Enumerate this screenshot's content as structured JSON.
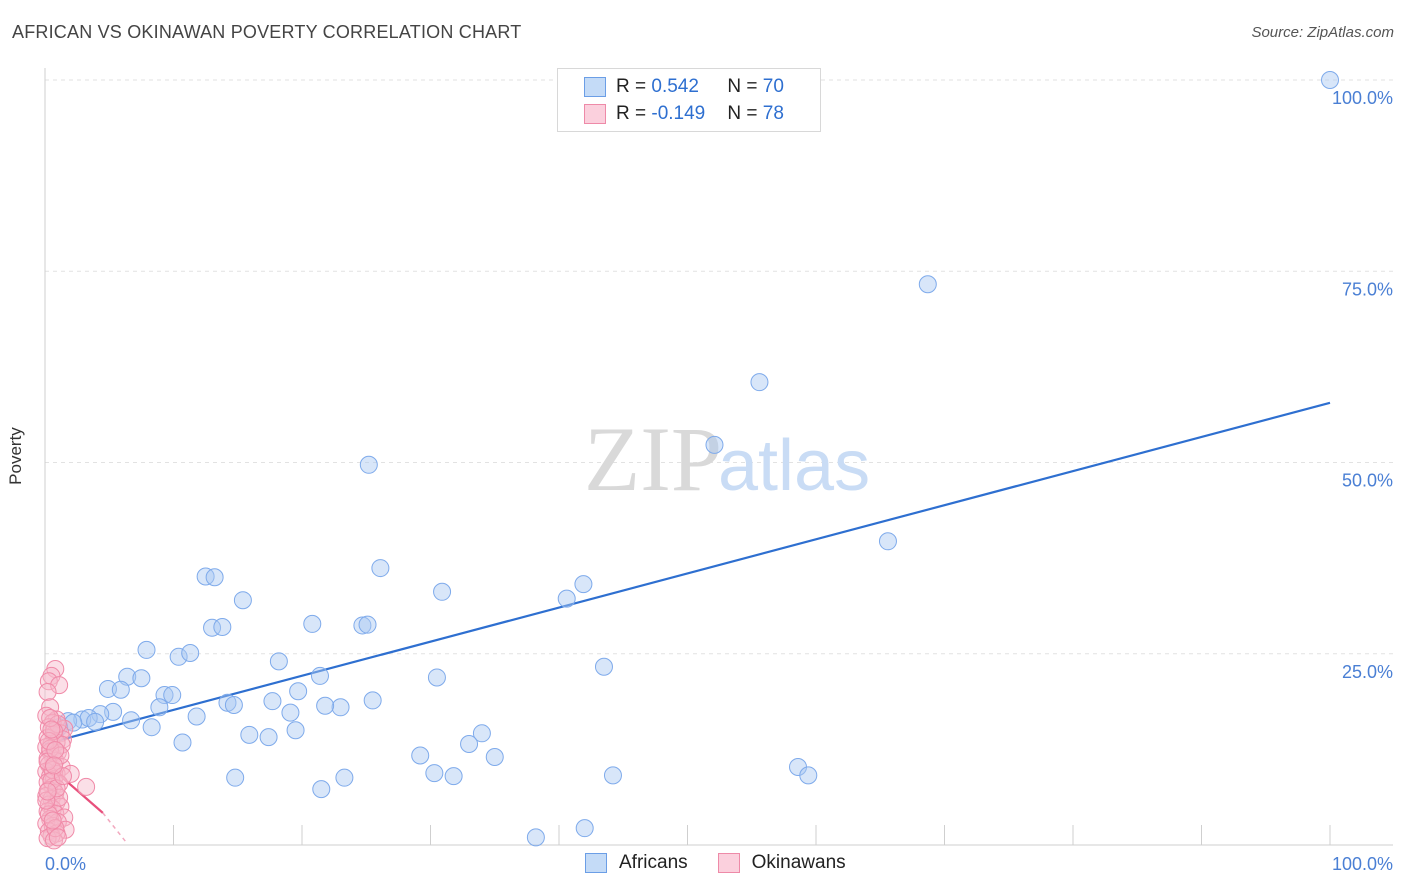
{
  "title": "AFRICAN VS OKINAWAN POVERTY CORRELATION CHART",
  "source": "Source: ZipAtlas.com",
  "watermark": {
    "zip": "ZIP",
    "atlas": "atlas"
  },
  "legend": {
    "africans": {
      "r_label": "R = ",
      "r_value": "0.542",
      "n_label": "N = ",
      "n_value": "70",
      "color": "#a9c8f2"
    },
    "okinawans": {
      "r_label": "R = ",
      "r_value": "-0.149",
      "n_label": "N = ",
      "n_value": "78",
      "color": "#f6b7ca"
    }
  },
  "bottom_legend": {
    "africans": "Africans",
    "okinawans": "Okinawans"
  },
  "chart_data": {
    "type": "scatter",
    "title": "AFRICAN VS OKINAWAN POVERTY CORRELATION CHART",
    "xlabel": "",
    "ylabel": "Poverty",
    "xlim": [
      0,
      100
    ],
    "ylim": [
      0,
      100
    ],
    "x_tick_labels": [
      "0.0%",
      "100.0%"
    ],
    "y_tick_labels": [
      "100.0%",
      "75.0%",
      "50.0%",
      "25.0%"
    ],
    "y_ticks": [
      100,
      75,
      50,
      25
    ],
    "series": [
      {
        "name": "Africans",
        "color": "#7eaaeb",
        "line_color": "#2e6fd0",
        "trend": {
          "x": [
            0,
            100
          ],
          "y": [
            13.2,
            57.8
          ]
        },
        "points": [
          [
            100,
            100
          ],
          [
            68.7,
            73.3
          ],
          [
            55.6,
            60.5
          ],
          [
            52.1,
            52.3
          ],
          [
            25.2,
            49.7
          ],
          [
            65.6,
            39.7
          ],
          [
            26.1,
            36.2
          ],
          [
            41.9,
            34.1
          ],
          [
            30.9,
            33.1
          ],
          [
            12.5,
            35.1
          ],
          [
            13.2,
            35.0
          ],
          [
            40.6,
            32.2
          ],
          [
            15.4,
            32.0
          ],
          [
            20.8,
            28.9
          ],
          [
            24.7,
            28.7
          ],
          [
            25.1,
            28.8
          ],
          [
            13.0,
            28.4
          ],
          [
            13.8,
            28.5
          ],
          [
            7.9,
            25.5
          ],
          [
            10.4,
            24.6
          ],
          [
            11.3,
            25.1
          ],
          [
            18.2,
            24.0
          ],
          [
            43.5,
            23.3
          ],
          [
            6.4,
            22.0
          ],
          [
            7.5,
            21.8
          ],
          [
            21.4,
            22.1
          ],
          [
            30.5,
            21.9
          ],
          [
            4.9,
            20.4
          ],
          [
            5.9,
            20.3
          ],
          [
            9.3,
            19.6
          ],
          [
            9.9,
            19.6
          ],
          [
            19.7,
            20.1
          ],
          [
            14.2,
            18.6
          ],
          [
            14.7,
            18.3
          ],
          [
            17.7,
            18.8
          ],
          [
            23.0,
            18.0
          ],
          [
            25.5,
            18.9
          ],
          [
            8.9,
            18.0
          ],
          [
            21.8,
            18.2
          ],
          [
            19.1,
            17.3
          ],
          [
            11.8,
            16.8
          ],
          [
            5.3,
            17.4
          ],
          [
            4.3,
            17.1
          ],
          [
            6.7,
            16.3
          ],
          [
            2.9,
            16.4
          ],
          [
            3.4,
            16.6
          ],
          [
            3.9,
            16.1
          ],
          [
            1.8,
            16.2
          ],
          [
            2.2,
            16.0
          ],
          [
            8.3,
            15.4
          ],
          [
            19.5,
            15.0
          ],
          [
            1.1,
            15.4
          ],
          [
            0.8,
            14.6
          ],
          [
            15.9,
            14.4
          ],
          [
            17.4,
            14.1
          ],
          [
            10.7,
            13.4
          ],
          [
            34.0,
            14.6
          ],
          [
            33.0,
            13.2
          ],
          [
            35.0,
            11.5
          ],
          [
            29.2,
            11.7
          ],
          [
            30.3,
            9.4
          ],
          [
            31.8,
            9.0
          ],
          [
            44.2,
            9.1
          ],
          [
            14.8,
            8.8
          ],
          [
            23.3,
            8.8
          ],
          [
            21.5,
            7.3
          ],
          [
            58.6,
            10.2
          ],
          [
            59.4,
            9.1
          ],
          [
            42.0,
            2.2
          ],
          [
            38.2,
            1.0
          ]
        ]
      },
      {
        "name": "Okinawans",
        "color": "#f08aa8",
        "line_color": "#e8507c",
        "trend": {
          "x": [
            0,
            4.5
          ],
          "y": [
            10.8,
            4.2
          ]
        },
        "trend_dashed": {
          "x": [
            4.5,
            6.3
          ],
          "y": [
            4.2,
            0.4
          ]
        },
        "points": [
          [
            0.8,
            23.0
          ],
          [
            0.5,
            22.1
          ],
          [
            0.3,
            21.4
          ],
          [
            1.1,
            20.9
          ],
          [
            0.2,
            20.0
          ],
          [
            0.4,
            18.0
          ],
          [
            0.9,
            16.4
          ],
          [
            0.1,
            16.9
          ],
          [
            0.6,
            16.0
          ],
          [
            1.5,
            15.2
          ],
          [
            0.3,
            15.4
          ],
          [
            1.2,
            14.6
          ],
          [
            0.7,
            14.4
          ],
          [
            0.2,
            14.0
          ],
          [
            1.4,
            13.8
          ],
          [
            0.5,
            13.2
          ],
          [
            0.9,
            13.4
          ],
          [
            0.1,
            12.8
          ],
          [
            0.4,
            12.2
          ],
          [
            1.0,
            12.1
          ],
          [
            0.6,
            11.6
          ],
          [
            0.2,
            11.3
          ],
          [
            0.8,
            11.0
          ],
          [
            0.3,
            10.5
          ],
          [
            1.3,
            10.2
          ],
          [
            0.5,
            10.0
          ],
          [
            0.1,
            9.6
          ],
          [
            0.9,
            9.3
          ],
          [
            0.4,
            9.0
          ],
          [
            0.7,
            8.6
          ],
          [
            2.0,
            9.3
          ],
          [
            0.2,
            8.2
          ],
          [
            1.1,
            8.0
          ],
          [
            0.6,
            7.6
          ],
          [
            0.3,
            7.2
          ],
          [
            3.2,
            7.6
          ],
          [
            0.8,
            6.8
          ],
          [
            0.1,
            6.4
          ],
          [
            0.5,
            6.0
          ],
          [
            0.9,
            5.6
          ],
          [
            0.3,
            5.3
          ],
          [
            1.2,
            5.0
          ],
          [
            0.6,
            4.7
          ],
          [
            0.2,
            4.4
          ],
          [
            0.8,
            4.1
          ],
          [
            1.5,
            3.6
          ],
          [
            0.4,
            3.4
          ],
          [
            1.0,
            3.0
          ],
          [
            0.1,
            2.8
          ],
          [
            0.6,
            2.5
          ],
          [
            1.6,
            2.0
          ],
          [
            0.3,
            1.8
          ],
          [
            0.9,
            1.5
          ],
          [
            0.5,
            1.2
          ],
          [
            0.2,
            0.9
          ],
          [
            0.7,
            0.6
          ],
          [
            1.3,
            13.1
          ],
          [
            1.0,
            15.8
          ],
          [
            0.4,
            12.6
          ],
          [
            0.6,
            9.8
          ],
          [
            1.1,
            6.2
          ],
          [
            0.3,
            4.0
          ],
          [
            0.8,
            2.2
          ],
          [
            0.2,
            10.9
          ],
          [
            0.7,
            14.9
          ],
          [
            0.5,
            8.4
          ],
          [
            1.2,
            11.7
          ],
          [
            0.1,
            5.8
          ],
          [
            0.9,
            7.4
          ],
          [
            0.4,
            16.6
          ],
          [
            0.6,
            3.2
          ],
          [
            1.4,
            9.0
          ],
          [
            0.3,
            13.6
          ],
          [
            0.8,
            12.4
          ],
          [
            0.2,
            7.0
          ],
          [
            1.0,
            1.0
          ],
          [
            0.5,
            15.1
          ],
          [
            0.7,
            10.4
          ]
        ]
      }
    ]
  }
}
